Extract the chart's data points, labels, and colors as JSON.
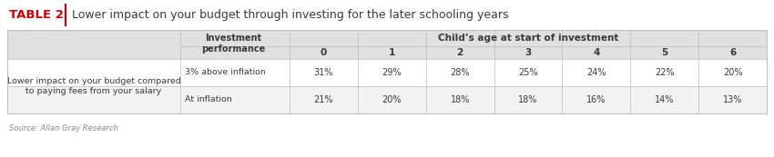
{
  "title_table": "TABLE 2",
  "title_text": "Lower impact on your budget through investing for the later schooling years",
  "header_col3": "Child’s age at start of investment",
  "age_headers": [
    "0",
    "1",
    "2",
    "3",
    "4",
    "5",
    "6"
  ],
  "row_label": "Lower impact on your budget compared\nto paying fees from your salary",
  "rows": [
    {
      "performance": "3% above inflation",
      "values": [
        "31%",
        "29%",
        "28%",
        "25%",
        "24%",
        "22%",
        "20%"
      ]
    },
    {
      "performance": "At inflation",
      "values": [
        "21%",
        "20%",
        "18%",
        "18%",
        "16%",
        "14%",
        "13%"
      ]
    }
  ],
  "source": "Source: Allan Gray Research",
  "header_bg": "#e0e0e0",
  "white": "#ffffff",
  "row2_bg": "#f2f2f2",
  "red_color": "#cc0000",
  "text_color": "#3a3a3a",
  "border_color": "#bbbbbb",
  "title_divider_color": "#cc0000"
}
